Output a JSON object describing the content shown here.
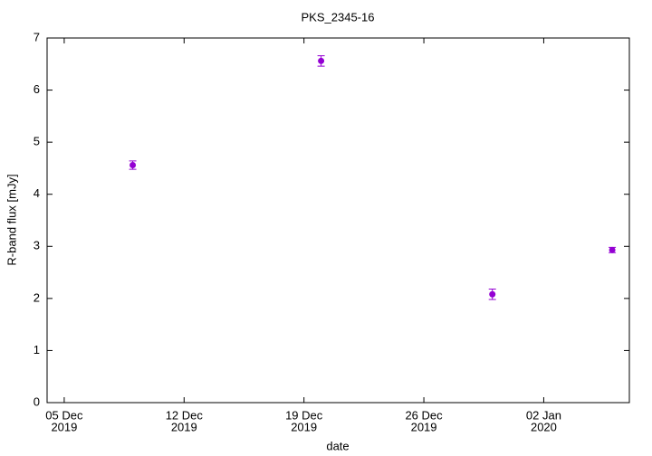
{
  "chart_data": {
    "type": "scatter",
    "title": "PKS_2345-16",
    "xlabel": "date",
    "ylabel": "R-band flux [mJy]",
    "x": [
      "2019-12-09",
      "2019-12-20",
      "2019-12-30",
      "2020-01-06"
    ],
    "series": [
      {
        "color": "#9400d3",
        "values": [
          4.56,
          6.56,
          2.08,
          2.93
        ],
        "errors": [
          0.08,
          0.1,
          0.1,
          0.05
        ]
      }
    ],
    "xlim": [
      "2019-12-04",
      "2020-01-07"
    ],
    "xticks": [
      {
        "value": "2019-12-05",
        "label": [
          "05 Dec",
          "2019"
        ]
      },
      {
        "value": "2019-12-12",
        "label": [
          "12 Dec",
          "2019"
        ]
      },
      {
        "value": "2019-12-19",
        "label": [
          "19 Dec",
          "2019"
        ]
      },
      {
        "value": "2019-12-26",
        "label": [
          "26 Dec",
          "2019"
        ]
      },
      {
        "value": "2020-01-02",
        "label": [
          "02 Jan",
          "2020"
        ]
      }
    ],
    "ylim": [
      0,
      7
    ],
    "yticks": [
      0,
      1,
      2,
      3,
      4,
      5,
      6,
      7
    ]
  }
}
